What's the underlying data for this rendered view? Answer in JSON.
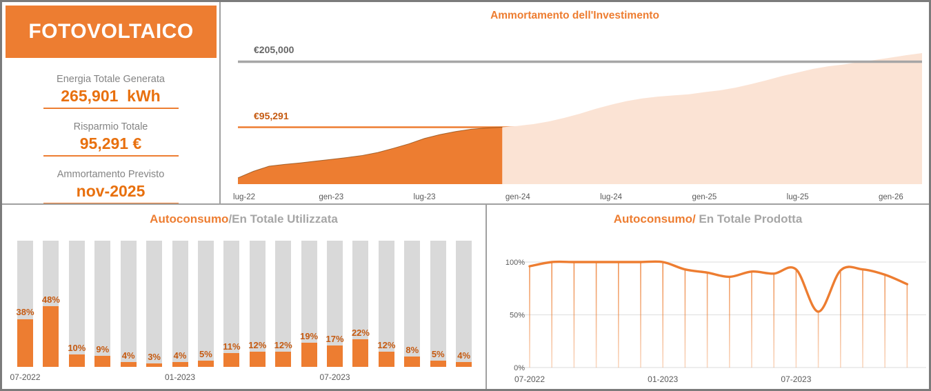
{
  "app": {
    "title": "FOTOVOLTAICO"
  },
  "kpi": {
    "items": [
      {
        "label": "Energia Totale Generata",
        "value": "265,901  kWh"
      },
      {
        "label": "Risparmio Totale",
        "value": "95,291 €"
      },
      {
        "label": "Ammortamento Previsto",
        "value": "nov-2025"
      }
    ]
  },
  "colors": {
    "orange": "#ED7D31",
    "dark_orange_label": "#C55A11",
    "pale_area": "#FBE3D4",
    "bar_gray": "#D9D9D9",
    "axis_text_gray": "#595959",
    "investment_line_gray": "#A6A6A6",
    "area_edge_brown": "#8E4E16",
    "grid_light_gray": "#E2E2E2"
  },
  "chart_data": [
    {
      "id": "amortization",
      "type": "area",
      "title": "Ammortamento dell'Investimento",
      "x_tick_labels": [
        "lug-22",
        "gen-23",
        "lug-23",
        "gen-24",
        "lug-24",
        "gen-25",
        "lug-25",
        "gen-26"
      ],
      "x_tick_month_indices": [
        0,
        6,
        12,
        18,
        24,
        30,
        36,
        42
      ],
      "months_total": 45,
      "actual_through_index": 17,
      "investment_line": {
        "label": "€205,000",
        "value": 205000
      },
      "savings_line": {
        "label": "€95,291",
        "value": 95291
      },
      "series": [
        {
          "name": "cumulative_savings_actual_eur",
          "values": [
            10500,
            21500,
            30000,
            33000,
            35500,
            38500,
            41500,
            44500,
            48000,
            53000,
            60000,
            67500,
            76500,
            83000,
            88000,
            92000,
            94000,
            95291
          ]
        },
        {
          "name": "cumulative_savings_projected_eur",
          "values": [
            97500,
            100500,
            105000,
            111000,
            118000,
            126000,
            133000,
            139000,
            143500,
            146500,
            148500,
            150500,
            154000,
            157000,
            161500,
            167500,
            174000,
            181000,
            187000,
            193000,
            197500,
            200500,
            204500,
            208000,
            212000,
            216000,
            219500
          ]
        }
      ],
      "ylim": [
        0,
        228000
      ],
      "legend": "off",
      "grid": "off"
    },
    {
      "id": "self_consumption_vs_used",
      "type": "bar",
      "title_highlight": "Autoconsumo",
      "title_rest": "/En Totale Utilizzata",
      "categories": [
        "07-2022",
        "08-2022",
        "09-2022",
        "10-2022",
        "11-2022",
        "12-2022",
        "01-2023",
        "02-2023",
        "03-2023",
        "04-2023",
        "05-2023",
        "06-2023",
        "07-2023",
        "08-2023",
        "09-2023",
        "10-2023",
        "11-2023",
        "12-2023"
      ],
      "values": [
        38,
        48,
        10,
        9,
        4,
        3,
        4,
        5,
        11,
        12,
        12,
        19,
        17,
        22,
        12,
        8,
        5,
        4
      ],
      "value_suffix": "%",
      "x_tick_labels": [
        "07-2022",
        "01-2023",
        "07-2023"
      ],
      "x_tick_indices": [
        0,
        6,
        12
      ],
      "ylim": [
        0,
        100
      ],
      "grid": "off"
    },
    {
      "id": "self_consumption_vs_produced",
      "type": "line",
      "title_highlight": "Autoconsumo/",
      "title_rest": " En Totale Prodotta",
      "categories": [
        "07-2022",
        "08-2022",
        "09-2022",
        "10-2022",
        "11-2022",
        "12-2022",
        "01-2023",
        "02-2023",
        "03-2023",
        "04-2023",
        "05-2023",
        "06-2023",
        "07-2023",
        "08-2023",
        "09-2023",
        "10-2023",
        "11-2023",
        "12-2023"
      ],
      "values": [
        96,
        100,
        100,
        100,
        100,
        100,
        100,
        93,
        90,
        86,
        91,
        89,
        93,
        53,
        92,
        93,
        88,
        79
      ],
      "y_tick_labels": [
        "0%",
        "50%",
        "100%"
      ],
      "y_tick_values": [
        0,
        50,
        100
      ],
      "x_tick_labels": [
        "07-2022",
        "01-2023",
        "07-2023"
      ],
      "x_tick_indices": [
        0,
        6,
        12
      ],
      "ylim": [
        0,
        100
      ],
      "grid": "on"
    }
  ]
}
